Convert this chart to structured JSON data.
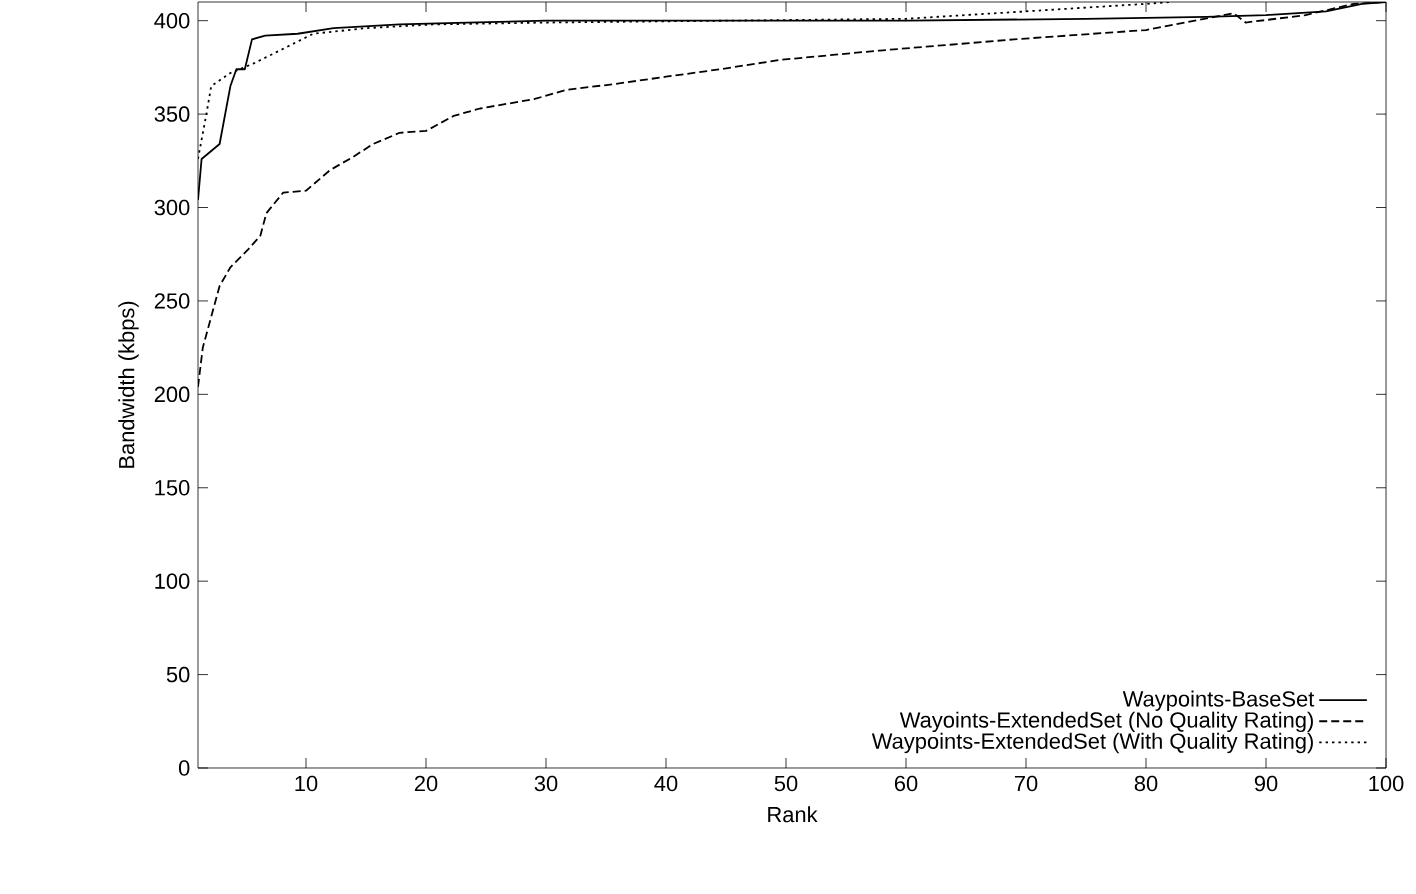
{
  "chart_data": {
    "type": "line",
    "xlabel": "Rank",
    "ylabel": "Bandwidth (kbps)",
    "xlim": [
      1,
      100
    ],
    "xticks": [
      10,
      20,
      30,
      40,
      50,
      60,
      70,
      80,
      90,
      100
    ],
    "ylim": [
      0,
      410
    ],
    "yticks": [
      0,
      50,
      100,
      150,
      200,
      250,
      300,
      350,
      400
    ],
    "legend": "bottom right",
    "series": [
      {
        "name": "Waypoints-BaseSet",
        "color": "#000000",
        "line_style": "solid",
        "x": [
          1,
          1.3,
          2.8,
          3.7,
          4.2,
          4.9,
          5.5,
          6.6,
          9.3,
          12.3,
          17.8,
          23.4,
          30,
          45,
          60,
          75,
          85,
          90,
          95,
          98,
          100
        ],
        "values": [
          304,
          326,
          334,
          365,
          374,
          374,
          390,
          392,
          393,
          396,
          398,
          399,
          400,
          400,
          400,
          401,
          402,
          403,
          405,
          409,
          410
        ]
      },
      {
        "name": "Wayoints-ExtendedSet (No Quality Rating)",
        "color": "#000000",
        "line_style": "dashed",
        "x": [
          1,
          1.4,
          2.8,
          3.7,
          5.1,
          6.2,
          6.7,
          8.1,
          10,
          12,
          13.9,
          15.6,
          17.8,
          20,
          22.3,
          24.5,
          29,
          31.7,
          35.6,
          40,
          44.5,
          49.5,
          57.8,
          69,
          80,
          87.3,
          88.3,
          93.3,
          97.3,
          100
        ],
        "values": [
          204,
          225,
          258,
          268,
          277,
          285,
          297,
          308,
          309,
          320,
          327,
          334,
          340,
          341,
          349,
          353,
          358,
          363,
          366,
          370,
          374,
          379,
          384,
          390,
          395,
          404,
          399,
          403,
          409,
          410
        ]
      },
      {
        "name": "Waypoints-ExtendedSet (With Quality Rating)",
        "color": "#000000",
        "line_style": "dotted",
        "x": [
          1,
          1.7,
          2.1,
          3.7,
          5.6,
          7.8,
          10.6,
          15,
          20.6,
          30,
          45,
          60,
          70,
          80,
          82
        ],
        "values": [
          326,
          350,
          365,
          372,
          377,
          384,
          393,
          396,
          398,
          399,
          400,
          401,
          405,
          409,
          410
        ]
      }
    ]
  }
}
